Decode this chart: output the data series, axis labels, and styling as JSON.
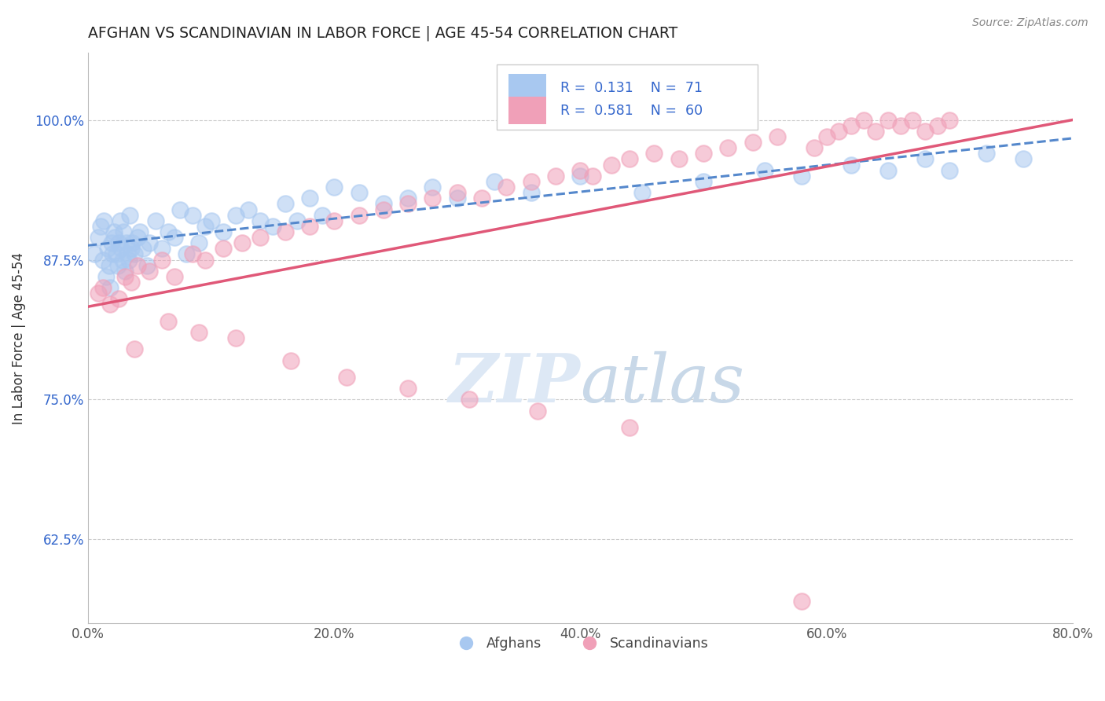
{
  "title": "AFGHAN VS SCANDINAVIAN IN LABOR FORCE | AGE 45-54 CORRELATION CHART",
  "source": "Source: ZipAtlas.com",
  "ylabel": "In Labor Force | Age 45-54",
  "x_tick_labels": [
    "0.0%",
    "20.0%",
    "40.0%",
    "60.0%",
    "80.0%"
  ],
  "x_tick_values": [
    0.0,
    20.0,
    40.0,
    60.0,
    80.0
  ],
  "y_tick_labels": [
    "62.5%",
    "75.0%",
    "87.5%",
    "100.0%"
  ],
  "y_tick_values": [
    62.5,
    75.0,
    87.5,
    100.0
  ],
  "xlim": [
    0.0,
    80.0
  ],
  "ylim": [
    55.0,
    106.0
  ],
  "legend_bottom_labels": [
    "Afghans",
    "Scandinavians"
  ],
  "legend_r_blue": "0.131",
  "legend_n_blue": "71",
  "legend_r_pink": "0.581",
  "legend_n_pink": "60",
  "blue_color": "#a8c8f0",
  "pink_color": "#f0a0b8",
  "blue_line_color": "#5588cc",
  "pink_line_color": "#e05878",
  "title_color": "#222222",
  "axis_label_color": "#333333",
  "ytick_color": "#3366cc",
  "xtick_color": "#555555",
  "grid_color": "#cccccc",
  "watermark_color": "#dde8f5",
  "source_color": "#888888",
  "legend_text_color": "#3366cc",
  "blue_scatter_x": [
    0.5,
    0.8,
    1.0,
    1.2,
    1.3,
    1.5,
    1.6,
    1.7,
    1.8,
    1.9,
    2.0,
    2.1,
    2.2,
    2.3,
    2.4,
    2.5,
    2.6,
    2.7,
    2.8,
    2.9,
    3.0,
    3.1,
    3.2,
    3.3,
    3.4,
    3.5,
    3.6,
    3.8,
    4.0,
    4.2,
    4.5,
    4.8,
    5.0,
    5.5,
    6.0,
    6.5,
    7.0,
    7.5,
    8.0,
    8.5,
    9.0,
    9.5,
    10.0,
    11.0,
    12.0,
    13.0,
    14.0,
    15.0,
    16.0,
    17.0,
    18.0,
    19.0,
    20.0,
    22.0,
    24.0,
    26.0,
    28.0,
    30.0,
    33.0,
    36.0,
    40.0,
    45.0,
    50.0,
    55.0,
    58.0,
    62.0,
    65.0,
    68.0,
    70.0,
    73.0,
    76.0
  ],
  "blue_scatter_y": [
    88.0,
    89.5,
    90.5,
    87.5,
    91.0,
    86.0,
    88.5,
    87.0,
    85.0,
    89.0,
    88.0,
    90.0,
    89.5,
    88.0,
    87.0,
    89.0,
    91.0,
    88.5,
    87.5,
    90.0,
    86.5,
    89.0,
    88.0,
    87.5,
    91.5,
    88.5,
    89.0,
    88.0,
    89.5,
    90.0,
    88.5,
    87.0,
    89.0,
    91.0,
    88.5,
    90.0,
    89.5,
    92.0,
    88.0,
    91.5,
    89.0,
    90.5,
    91.0,
    90.0,
    91.5,
    92.0,
    91.0,
    90.5,
    92.5,
    91.0,
    93.0,
    91.5,
    94.0,
    93.5,
    92.5,
    93.0,
    94.0,
    93.0,
    94.5,
    93.5,
    95.0,
    93.5,
    94.5,
    95.5,
    95.0,
    96.0,
    95.5,
    96.5,
    95.5,
    97.0,
    96.5
  ],
  "pink_scatter_x": [
    0.8,
    1.2,
    1.8,
    2.5,
    3.0,
    3.5,
    4.0,
    5.0,
    6.0,
    7.0,
    8.5,
    9.5,
    11.0,
    12.5,
    14.0,
    16.0,
    18.0,
    20.0,
    22.0,
    24.0,
    26.0,
    28.0,
    30.0,
    32.0,
    34.0,
    36.0,
    38.0,
    40.0,
    41.0,
    42.5,
    44.0,
    46.0,
    48.0,
    50.0,
    52.0,
    54.0,
    56.0,
    58.0,
    59.0,
    60.0,
    61.0,
    62.0,
    63.0,
    64.0,
    65.0,
    66.0,
    67.0,
    68.0,
    69.0,
    70.0,
    3.8,
    6.5,
    9.0,
    12.0,
    16.5,
    21.0,
    26.0,
    31.0,
    36.5,
    44.0
  ],
  "pink_scatter_y": [
    84.5,
    85.0,
    83.5,
    84.0,
    86.0,
    85.5,
    87.0,
    86.5,
    87.5,
    86.0,
    88.0,
    87.5,
    88.5,
    89.0,
    89.5,
    90.0,
    90.5,
    91.0,
    91.5,
    92.0,
    92.5,
    93.0,
    93.5,
    93.0,
    94.0,
    94.5,
    95.0,
    95.5,
    95.0,
    96.0,
    96.5,
    97.0,
    96.5,
    97.0,
    97.5,
    98.0,
    98.5,
    57.0,
    97.5,
    98.5,
    99.0,
    99.5,
    100.0,
    99.0,
    100.0,
    99.5,
    100.0,
    99.0,
    99.5,
    100.0,
    79.5,
    82.0,
    81.0,
    80.5,
    78.5,
    77.0,
    76.0,
    75.0,
    74.0,
    72.5
  ]
}
